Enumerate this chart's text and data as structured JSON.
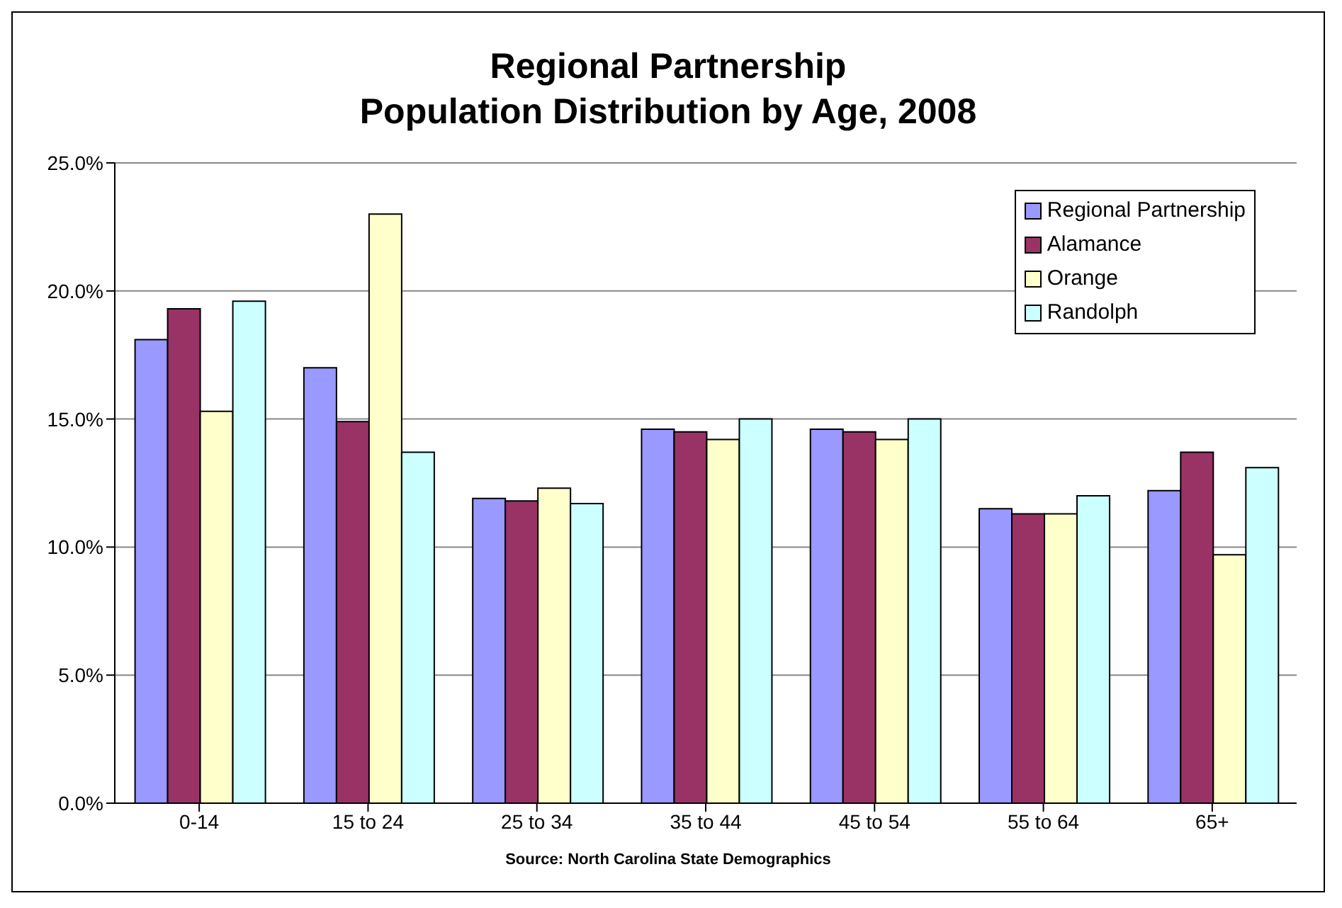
{
  "chart_data": {
    "type": "bar",
    "title": "Regional Partnership\nPopulation Distribution by Age, 2008",
    "categories": [
      "0-14",
      "15 to 24",
      "25 to 34",
      "35 to 44",
      "45 to 54",
      "55 to 64",
      "65+"
    ],
    "series": [
      {
        "name": "Regional Partnership",
        "color": "#9999ff",
        "values": [
          18.1,
          17.0,
          11.9,
          14.6,
          14.6,
          11.5,
          12.2
        ]
      },
      {
        "name": "Alamance",
        "color": "#993366",
        "values": [
          19.3,
          14.9,
          11.8,
          14.5,
          14.5,
          11.3,
          13.7
        ]
      },
      {
        "name": "Orange",
        "color": "#ffffcc",
        "values": [
          15.3,
          23.0,
          12.3,
          14.2,
          14.2,
          11.3,
          9.7
        ]
      },
      {
        "name": "Randolph",
        "color": "#ccffff",
        "values": [
          19.6,
          13.7,
          11.7,
          15.0,
          15.0,
          12.0,
          13.1
        ]
      }
    ],
    "ylim": [
      0,
      25
    ],
    "yticks": [
      {
        "value": 0,
        "label": "0.0%"
      },
      {
        "value": 5,
        "label": "5.0%"
      },
      {
        "value": 10,
        "label": "10.0%"
      },
      {
        "value": 15,
        "label": "15.0%"
      },
      {
        "value": 20,
        "label": "20.0%"
      },
      {
        "value": 25,
        "label": "25.0%"
      }
    ],
    "grid": "y",
    "legend": "top right",
    "annotations": [
      "Source: North Carolina State Demographics"
    ]
  }
}
